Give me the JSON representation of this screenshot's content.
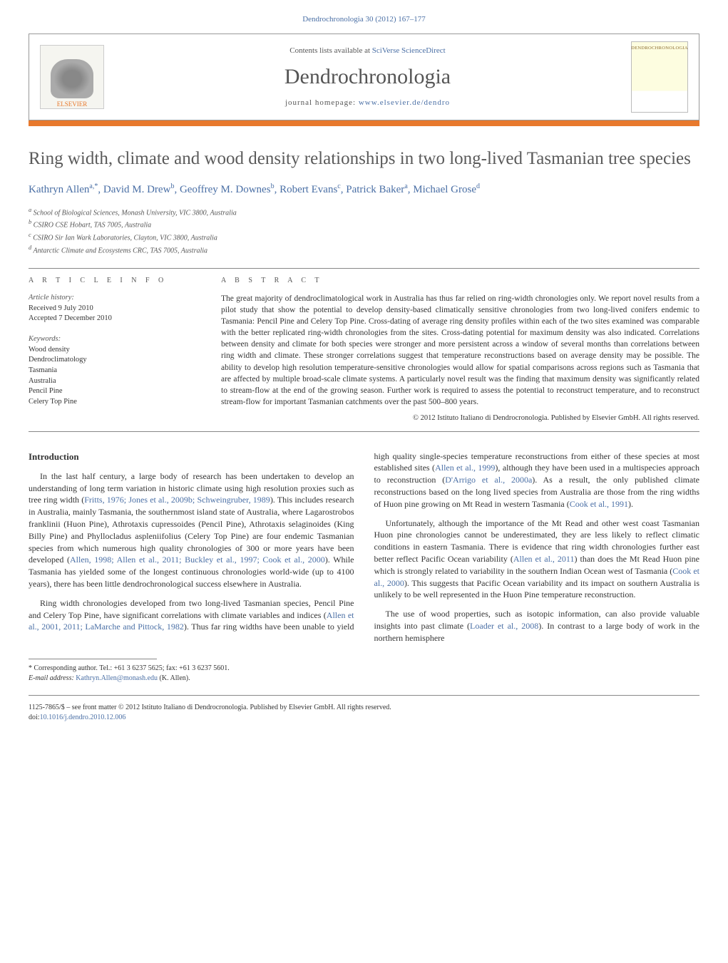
{
  "header": {
    "journal_ref": "Dendrochronologia 30 (2012) 167–177",
    "contents_text": "Contents lists available at ",
    "contents_link": "SciVerse ScienceDirect",
    "journal_title": "Dendrochronologia",
    "homepage_text": "journal homepage: ",
    "homepage_link": "www.elsevier.de/dendro",
    "publisher_logo": "ELSEVIER",
    "cover_logo": "DENDROCHRONOLOGIA"
  },
  "article": {
    "title": "Ring width, climate and wood density relationships in two long-lived Tasmanian tree species",
    "authors_html": "Kathryn Allen<sup>a,*</sup>, David M. Drew<sup>b</sup>, Geoffrey M. Downes<sup>b</sup>, Robert Evans<sup>c</sup>, Patrick Baker<sup>a</sup>, Michael Grose<sup>d</sup>",
    "affiliations": [
      "a School of Biological Sciences, Monash University, VIC 3800, Australia",
      "b CSIRO CSE Hobart, TAS 7005, Australia",
      "c CSIRO Sir Ian Wark Laboratories, Clayton, VIC 3800, Australia",
      "d Antarctic Climate and Ecosystems CRC, TAS 7005, Australia"
    ]
  },
  "info": {
    "heading": "a r t i c l e   i n f o",
    "history_label": "Article history:",
    "received": "Received 9 July 2010",
    "accepted": "Accepted 7 December 2010",
    "keywords_label": "Keywords:",
    "keywords": [
      "Wood density",
      "Dendroclimatology",
      "Tasmania",
      "Australia",
      "Pencil Pine",
      "Celery Top Pine"
    ]
  },
  "abstract": {
    "heading": "a b s t r a c t",
    "text": "The great majority of dendroclimatological work in Australia has thus far relied on ring-width chronologies only. We report novel results from a pilot study that show the potential to develop density-based climatically sensitive chronologies from two long-lived conifers endemic to Tasmania: Pencil Pine and Celery Top Pine. Cross-dating of average ring density profiles within each of the two sites examined was comparable with the better replicated ring-width chronologies from the sites. Cross-dating potential for maximum density was also indicated. Correlations between density and climate for both species were stronger and more persistent across a window of several months than correlations between ring width and climate. These stronger correlations suggest that temperature reconstructions based on average density may be possible. The ability to develop high resolution temperature-sensitive chronologies would allow for spatial comparisons across regions such as Tasmania that are affected by multiple broad-scale climate systems. A particularly novel result was the finding that maximum density was significantly related to stream-flow at the end of the growing season. Further work is required to assess the potential to reconstruct temperature, and to reconstruct stream-flow for important Tasmanian catchments over the past 500–800 years.",
    "copyright": "© 2012 Istituto Italiano di Dendrocronologia. Published by Elsevier GmbH. All rights reserved."
  },
  "body": {
    "intro_heading": "Introduction",
    "p1a": "In the last half century, a large body of research has been undertaken to develop an understanding of long term variation in historic climate using high resolution proxies such as tree ring width (",
    "p1_link1": "Fritts, 1976; Jones et al., 2009b; Schweingruber, 1989",
    "p1b": "). This includes research in Australia, mainly Tasmania, the southernmost island state of Australia, where Lagarostrobos franklinii (Huon Pine), Athrotaxis cupressoides (Pencil Pine), Athrotaxis selaginoides (King Billy Pine) and Phyllocladus aspleniifolius (Celery Top Pine) are four endemic Tasmanian species from which numerous high quality chronologies of 300 or more years have been developed (",
    "p1_link2": "Allen, 1998; Allen et al., 2011; Buckley et al., 1997; Cook et al., 2000",
    "p1c": "). While Tasmania has yielded some of the longest continuous chronologies world-wide (up to 4100 years), there has been little dendrochronological success elsewhere in Australia.",
    "p2a": "Ring width chronologies developed from two long-lived Tasmanian species, Pencil Pine and Celery Top Pine, have significant",
    "p2b": "correlations with climate variables and indices (",
    "p2_link1": "Allen et al., 2001, 2011; LaMarche and Pittock, 1982",
    "p2c": "). Thus far ring widths have been unable to yield high quality single-species temperature reconstructions from either of these species at most established sites (",
    "p2_link2": "Allen et al., 1999",
    "p2d": "), although they have been used in a multispecies approach to reconstruction (",
    "p2_link3": "D'Arrigo et al., 2000a",
    "p2e": "). As a result, the only published climate reconstructions based on the long lived species from Australia are those from the ring widths of Huon pine growing on Mt Read in western Tasmania (",
    "p2_link4": "Cook et al., 1991",
    "p2f": ").",
    "p3a": "Unfortunately, although the importance of the Mt Read and other west coast Tasmanian Huon pine chronologies cannot be underestimated, they are less likely to reflect climatic conditions in eastern Tasmania. There is evidence that ring width chronologies further east better reflect Pacific Ocean variability (",
    "p3_link1": "Allen et al., 2011",
    "p3b": ") than does the Mt Read Huon pine which is strongly related to variability in the southern Indian Ocean west of Tasmania (",
    "p3_link2": "Cook et al., 2000",
    "p3c": "). This suggests that Pacific Ocean variability and its impact on southern Australia is unlikely to be well represented in the Huon Pine temperature reconstruction.",
    "p4a": "The use of wood properties, such as isotopic information, can also provide valuable insights into past climate (",
    "p4_link1": "Loader et al., 2008",
    "p4b": "). In contrast to a large body of work in the northern hemisphere"
  },
  "footnote": {
    "marker": "*",
    "text": "Corresponding author. Tel.: +61 3 6237 5625; fax: +61 3 6237 5601.",
    "email_label": "E-mail address: ",
    "email": "Kathryn.Allen@monash.edu",
    "email_suffix": " (K. Allen)."
  },
  "footer": {
    "issn": "1125-7865/$ – see front matter © 2012 Istituto Italiano di Dendrocronologia. Published by Elsevier GmbH. All rights reserved.",
    "doi_label": "doi:",
    "doi": "10.1016/j.dendro.2010.12.006"
  },
  "colors": {
    "link": "#4a6fa5",
    "brand": "#e8792d",
    "text": "#333333",
    "muted": "#555555"
  }
}
